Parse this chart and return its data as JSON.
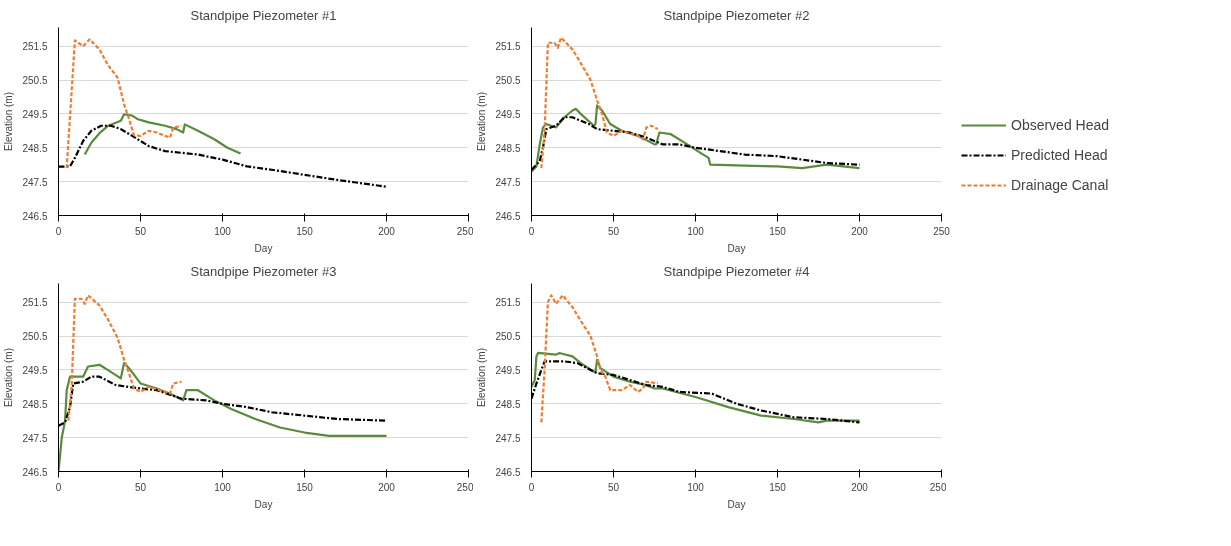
{
  "chart_data": [
    {
      "type": "line",
      "title": "Standpipe Piezometer #1",
      "xlabel": "Day",
      "ylabel": "Elevation (m)",
      "xlim": [
        0,
        250
      ],
      "xticks": [
        0,
        50,
        100,
        150,
        200,
        250
      ],
      "ylim": [
        246.5,
        252.05
      ],
      "yticks": [
        246.5,
        247.5,
        248.5,
        249.5,
        250.5,
        251.5
      ],
      "grid": "y",
      "series": [
        {
          "color": "#5a8a3c",
          "line_style": "solid",
          "x": [
            16,
            20,
            25,
            30,
            38,
            40,
            45,
            48,
            55,
            65,
            72,
            76,
            77,
            85,
            95,
            103,
            111
          ],
          "values": [
            248.3,
            248.65,
            248.93,
            249.14,
            249.3,
            249.49,
            249.45,
            249.35,
            249.25,
            249.15,
            249.05,
            248.95,
            249.19,
            249.0,
            248.75,
            248.5,
            248.33
          ]
        },
        {
          "color": "#000000",
          "line_style": "dashdot",
          "x": [
            0,
            7,
            10,
            15,
            20,
            26,
            32,
            38,
            45,
            55,
            65,
            75,
            85,
            100,
            115,
            130,
            150,
            170,
            185,
            200
          ],
          "values": [
            247.94,
            247.95,
            248.2,
            248.7,
            249.0,
            249.15,
            249.15,
            249.05,
            248.85,
            248.55,
            248.4,
            248.35,
            248.3,
            248.15,
            247.95,
            247.85,
            247.7,
            247.55,
            247.45,
            247.35
          ]
        },
        {
          "color": "#ed7d31",
          "line_style": "dashed",
          "x": [
            5,
            10,
            12,
            15,
            17,
            19,
            25,
            30,
            36,
            40,
            43,
            46,
            50,
            55,
            60,
            65,
            68,
            70,
            75
          ],
          "values": [
            247.9,
            251.67,
            251.6,
            251.5,
            251.6,
            251.7,
            251.4,
            250.95,
            250.57,
            249.78,
            249.35,
            248.87,
            248.85,
            249.0,
            248.95,
            248.85,
            248.8,
            249.1,
            249.14
          ]
        }
      ]
    },
    {
      "type": "line",
      "title": "Standpipe Piezometer #2",
      "xlabel": "Day",
      "ylabel": "Elevation (m)",
      "xlim": [
        0,
        250
      ],
      "xticks": [
        0,
        50,
        100,
        150,
        200,
        250
      ],
      "ylim": [
        246.5,
        252.05
      ],
      "yticks": [
        246.5,
        247.5,
        248.5,
        249.5,
        250.5,
        251.5
      ],
      "grid": "y",
      "legend": "right",
      "series": [
        {
          "name": "Observed Head",
          "color": "#5a8a3c",
          "line_style": "solid",
          "x": [
            0,
            3,
            5,
            7,
            9,
            15,
            20,
            25,
            27,
            30,
            38,
            39,
            40,
            43,
            48,
            55,
            65,
            75,
            76,
            78,
            85,
            95,
            103,
            108,
            109,
            130,
            150,
            165,
            180,
            200
          ],
          "values": [
            247.8,
            247.95,
            248.6,
            249.1,
            249.2,
            249.1,
            249.4,
            249.6,
            249.65,
            249.5,
            249.15,
            249.2,
            249.75,
            249.6,
            249.2,
            249.0,
            248.85,
            248.6,
            248.6,
            248.95,
            248.9,
            248.6,
            248.35,
            248.2,
            248.0,
            247.97,
            247.95,
            247.9,
            248.0,
            247.9
          ]
        },
        {
          "name": "Predicted Head",
          "color": "#000000",
          "line_style": "dashdot",
          "x": [
            0,
            5,
            7,
            9,
            15,
            20,
            25,
            30,
            35,
            40,
            50,
            60,
            70,
            80,
            90,
            100,
            115,
            130,
            150,
            165,
            180,
            200
          ],
          "values": [
            247.85,
            248.1,
            248.5,
            249.05,
            249.15,
            249.4,
            249.4,
            249.3,
            249.2,
            249.05,
            249.0,
            248.95,
            248.8,
            248.6,
            248.6,
            248.5,
            248.4,
            248.3,
            248.25,
            248.15,
            248.05,
            248.0
          ]
        },
        {
          "name": "Drainage Canal",
          "color": "#ed7d31",
          "line_style": "dashed",
          "x": [
            6,
            8,
            10,
            14,
            16,
            18,
            25,
            30,
            36,
            40,
            43,
            46,
            50,
            55,
            65,
            68,
            70,
            73,
            77
          ],
          "values": [
            247.9,
            249.0,
            251.6,
            251.6,
            251.45,
            251.75,
            251.4,
            251.0,
            250.5,
            249.9,
            249.5,
            248.95,
            248.85,
            249.0,
            248.85,
            248.75,
            249.1,
            249.15,
            249.05
          ]
        }
      ]
    },
    {
      "type": "line",
      "title": "Standpipe Piezometer #3",
      "xlabel": "Day",
      "ylabel": "Elevation (m)",
      "xlim": [
        0,
        250
      ],
      "xticks": [
        0,
        50,
        100,
        150,
        200,
        250
      ],
      "ylim": [
        246.5,
        252.05
      ],
      "yticks": [
        246.5,
        247.5,
        248.5,
        249.5,
        250.5,
        251.5
      ],
      "grid": "y",
      "series": [
        {
          "color": "#5a8a3c",
          "line_style": "solid",
          "x": [
            0,
            2,
            4,
            5,
            7,
            10,
            15,
            18,
            25,
            30,
            38,
            40,
            43,
            50,
            60,
            70,
            76,
            78,
            85,
            95,
            105,
            120,
            135,
            150,
            165,
            200
          ],
          "values": [
            246.5,
            247.5,
            248.0,
            248.9,
            249.3,
            249.3,
            249.3,
            249.6,
            249.65,
            249.5,
            249.25,
            249.7,
            249.55,
            249.1,
            248.95,
            248.75,
            248.6,
            248.9,
            248.9,
            248.6,
            248.35,
            248.05,
            247.8,
            247.65,
            247.55,
            247.55
          ]
        },
        {
          "color": "#000000",
          "line_style": "dashdot",
          "x": [
            0,
            4,
            7,
            9,
            15,
            20,
            25,
            35,
            50,
            60,
            75,
            90,
            100,
            115,
            130,
            150,
            170,
            200
          ],
          "values": [
            247.85,
            247.95,
            248.4,
            249.1,
            249.15,
            249.3,
            249.3,
            249.05,
            248.95,
            248.9,
            248.65,
            248.6,
            248.5,
            248.4,
            248.25,
            248.15,
            248.05,
            248.0
          ]
        },
        {
          "color": "#ed7d31",
          "line_style": "dashed",
          "x": [
            6,
            8,
            10,
            14,
            16,
            18,
            25,
            30,
            36,
            40,
            43,
            46,
            50,
            55,
            65,
            68,
            70,
            75
          ],
          "values": [
            248.0,
            249.0,
            251.6,
            251.6,
            251.45,
            251.7,
            251.4,
            251.0,
            250.45,
            249.8,
            249.4,
            248.95,
            248.85,
            249.0,
            248.85,
            248.8,
            249.1,
            249.15
          ]
        }
      ]
    },
    {
      "type": "line",
      "title": "Standpipe Piezometer #4",
      "xlabel": "Day",
      "ylabel": "Elevation (m)",
      "xlim": [
        0,
        250
      ],
      "xticks": [
        0,
        50,
        100,
        150,
        200,
        250
      ],
      "ylim": [
        246.5,
        252.05
      ],
      "yticks": [
        246.5,
        247.5,
        248.5,
        249.5,
        250.5,
        251.5
      ],
      "grid": "y",
      "series": [
        {
          "color": "#5a8a3c",
          "line_style": "solid",
          "x": [
            0,
            2,
            3,
            4,
            15,
            17,
            25,
            30,
            38,
            39,
            40,
            42,
            50,
            60,
            70,
            75,
            80,
            100,
            120,
            140,
            160,
            175,
            180,
            200
          ],
          "values": [
            249.0,
            249.2,
            249.9,
            250.0,
            249.95,
            250.0,
            249.9,
            249.7,
            249.45,
            249.45,
            249.8,
            249.55,
            249.3,
            249.15,
            249.05,
            248.95,
            248.95,
            248.7,
            248.4,
            248.15,
            248.05,
            247.95,
            248.0,
            248.0
          ]
        },
        {
          "color": "#000000",
          "line_style": "dashdot",
          "x": [
            0,
            3,
            6,
            8,
            20,
            28,
            40,
            50,
            70,
            80,
            90,
            110,
            125,
            140,
            160,
            180,
            200
          ],
          "values": [
            248.65,
            249.1,
            249.5,
            249.75,
            249.75,
            249.7,
            249.4,
            249.35,
            249.05,
            249.0,
            248.85,
            248.8,
            248.5,
            248.3,
            248.1,
            248.05,
            247.95
          ]
        },
        {
          "color": "#ed7d31",
          "line_style": "dashed",
          "x": [
            6,
            8,
            10,
            12,
            15,
            19,
            25,
            30,
            36,
            40,
            42,
            45,
            48,
            55,
            60,
            65,
            68,
            70,
            77
          ],
          "values": [
            247.95,
            249.5,
            251.5,
            251.7,
            251.45,
            251.7,
            251.35,
            250.95,
            250.5,
            249.9,
            249.5,
            249.3,
            248.9,
            248.9,
            249.05,
            248.85,
            248.95,
            249.15,
            249.1
          ]
        }
      ]
    }
  ]
}
